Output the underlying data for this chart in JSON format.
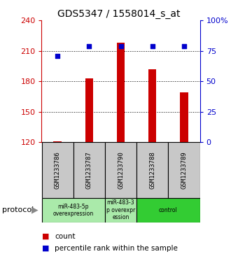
{
  "title": "GDS5347 / 1558014_s_at",
  "samples": [
    "GSM1233786",
    "GSM1233787",
    "GSM1233790",
    "GSM1233788",
    "GSM1233789"
  ],
  "counts": [
    121,
    183,
    218,
    192,
    169
  ],
  "percentiles": [
    71,
    79,
    79,
    79,
    79
  ],
  "ylim_left": [
    120,
    240
  ],
  "ylim_right": [
    0,
    100
  ],
  "yticks_left": [
    120,
    150,
    180,
    210,
    240
  ],
  "yticks_right": [
    0,
    25,
    50,
    75,
    100
  ],
  "bar_color": "#cc0000",
  "dot_color": "#0000cc",
  "groups": [
    {
      "start": 0,
      "end": 1,
      "label": "miR-483-5p\noverexpression",
      "color": "#aaeaaa"
    },
    {
      "start": 2,
      "end": 2,
      "label": "miR-483-3\np overexpr\nession",
      "color": "#aaeaaa"
    },
    {
      "start": 3,
      "end": 4,
      "label": "control",
      "color": "#33cc33"
    }
  ],
  "sample_box_color": "#c8c8c8",
  "grid_color": "black",
  "title_fontsize": 10,
  "tick_fontsize": 8,
  "label_fontsize": 8
}
